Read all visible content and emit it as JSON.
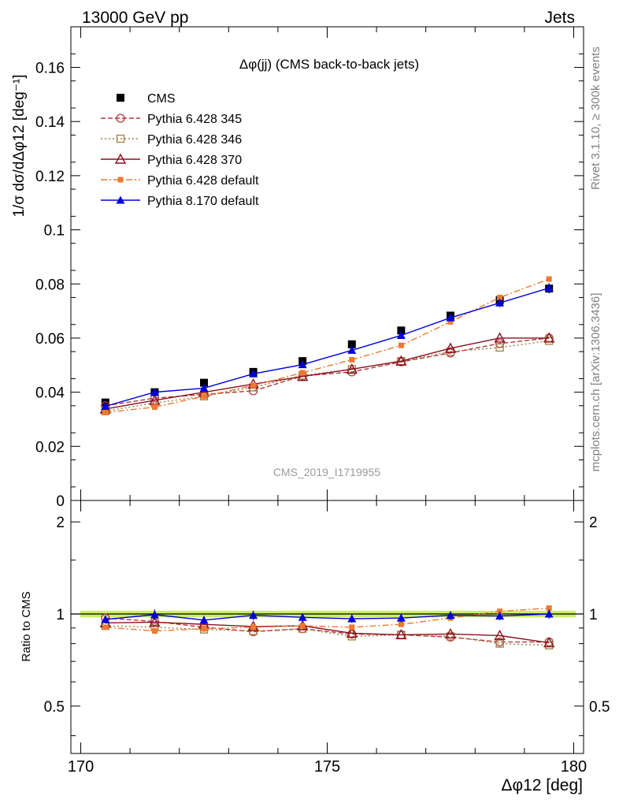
{
  "header": {
    "energy": "13000 GeV pp",
    "process": "Jets"
  },
  "side_labels": {
    "rivet": "Rivet 3.1.10, ≥ 300k events",
    "mcplots": "mcplots.cern.ch [arXiv:1306.3436]"
  },
  "watermark": "CMS_2019_I1719955",
  "chart_data": [
    {
      "type": "line",
      "title": "Δφ(jj) (CMS back-to-back jets)",
      "ylabel": "1/σ dσ/dΔφ12 [deg⁻¹]",
      "ylim": [
        0,
        0.175
      ],
      "yticks": [
        "0",
        "0.02",
        "0.04",
        "0.06",
        "0.08",
        "0.1",
        "0.12",
        "0.14",
        "0.16"
      ],
      "ytick_values": [
        0,
        0.02,
        0.04,
        0.06,
        0.08,
        0.1,
        0.12,
        0.14,
        0.16
      ],
      "xlim": [
        169.8,
        180.2
      ],
      "x": [
        170.5,
        171.5,
        172.5,
        173.5,
        174.5,
        175.5,
        176.5,
        177.5,
        178.5,
        179.5
      ],
      "legend_position": "top-left",
      "series": [
        {
          "name": "CMS",
          "color": "#000000",
          "marker": "square-filled",
          "line": "none",
          "values": [
            0.0362,
            0.04,
            0.0435,
            0.0475,
            0.0515,
            0.0577,
            0.0628,
            0.0683,
            0.074,
            0.0783
          ],
          "errors": [
            0.0012,
            0.0012,
            0.0012,
            0.0012,
            0.0012,
            0.0012,
            0.0012,
            0.0013,
            0.0015,
            0.0018
          ]
        },
        {
          "name": "Pythia 6.428 345",
          "color": "#b03a3a",
          "marker": "circle-open",
          "line": "dashed",
          "values": [
            0.035,
            0.0378,
            0.0392,
            0.0405,
            0.046,
            0.0475,
            0.0512,
            0.0545,
            0.058,
            0.06
          ]
        },
        {
          "name": "Pythia 6.428 346",
          "color": "#a08040",
          "marker": "square-open",
          "line": "dotted",
          "values": [
            0.033,
            0.036,
            0.0385,
            0.0418,
            0.0462,
            0.0485,
            0.0515,
            0.055,
            0.0565,
            0.059
          ]
        },
        {
          "name": "Pythia 6.428 370",
          "color": "#8b1020",
          "marker": "triangle-open",
          "line": "solid",
          "values": [
            0.0338,
            0.037,
            0.04,
            0.043,
            0.0458,
            0.0485,
            0.0515,
            0.0562,
            0.06,
            0.06
          ]
        },
        {
          "name": "Pythia 6.428 default",
          "color": "#f07830",
          "marker": "square-filled-small",
          "line": "dashdot",
          "values": [
            0.0325,
            0.0345,
            0.0385,
            0.0425,
            0.0472,
            0.052,
            0.0573,
            0.066,
            0.075,
            0.0818
          ]
        },
        {
          "name": "Pythia 8.170 default",
          "color": "#0000dd",
          "marker": "triangle-filled",
          "line": "solid",
          "values": [
            0.0348,
            0.04,
            0.0415,
            0.0468,
            0.0502,
            0.0555,
            0.061,
            0.0675,
            0.073,
            0.0785
          ],
          "errors": [
            0.001,
            0.001,
            0.001,
            0.0012,
            0.0012,
            0.0012,
            0.0012,
            0.0013,
            0.0016,
            0.0018
          ]
        }
      ]
    },
    {
      "type": "line",
      "ylabel": "Ratio to CMS",
      "ylim": [
        0.35,
        2.35
      ],
      "yticks": [
        "0.5",
        "1",
        "2"
      ],
      "ytick_values": [
        0.5,
        1,
        2
      ],
      "xlabel": "Δφ12 [deg]",
      "xticks": [
        "170",
        "175",
        "180"
      ],
      "xtick_values": [
        170,
        175,
        180
      ],
      "xlim": [
        169.8,
        180.2
      ],
      "x": [
        170.5,
        171.5,
        172.5,
        173.5,
        174.5,
        175.5,
        176.5,
        177.5,
        178.5,
        179.5
      ],
      "band": {
        "color": "#ccee66",
        "lower": 0.975,
        "upper": 1.025
      },
      "series": [
        {
          "name": "Pythia 6.428 345",
          "color": "#b03a3a",
          "marker": "circle-open",
          "line": "dashed",
          "values": [
            0.97,
            0.945,
            0.905,
            0.875,
            0.895,
            0.86,
            0.855,
            0.84,
            0.81,
            0.81
          ]
        },
        {
          "name": "Pythia 6.428 346",
          "color": "#a08040",
          "marker": "square-open",
          "line": "dotted",
          "values": [
            0.915,
            0.905,
            0.89,
            0.88,
            0.895,
            0.845,
            0.855,
            0.845,
            0.8,
            0.79
          ]
        },
        {
          "name": "Pythia 6.428 370",
          "color": "#8b1020",
          "marker": "triangle-open",
          "line": "solid",
          "values": [
            0.935,
            0.94,
            0.925,
            0.91,
            0.915,
            0.865,
            0.855,
            0.86,
            0.85,
            0.805
          ]
        },
        {
          "name": "Pythia 6.428 default",
          "color": "#f07830",
          "marker": "square-filled-small",
          "line": "dashdot",
          "values": [
            0.905,
            0.88,
            0.895,
            0.905,
            0.915,
            0.905,
            0.925,
            0.97,
            1.02,
            1.045
          ]
        },
        {
          "name": "Pythia 8.170 default",
          "color": "#0000dd",
          "marker": "triangle-filled",
          "line": "solid",
          "values": [
            0.96,
            0.995,
            0.955,
            0.99,
            0.975,
            0.965,
            0.97,
            0.99,
            0.985,
            1.0
          ],
          "errors": [
            0.03,
            0.04,
            0.03,
            0.035,
            0.03,
            0.03,
            0.03,
            0.03,
            0.03,
            0.035
          ]
        }
      ]
    }
  ]
}
